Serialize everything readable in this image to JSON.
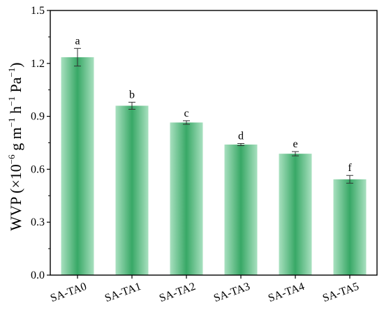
{
  "chart_data": {
    "type": "bar",
    "categories": [
      "SA-TA0",
      "SA-TA1",
      "SA-TA2",
      "SA-TA3",
      "SA-TA4",
      "SA-TA5"
    ],
    "values": [
      1.235,
      0.96,
      0.865,
      0.74,
      0.688,
      0.543
    ],
    "errors": [
      0.05,
      0.02,
      0.01,
      0.006,
      0.012,
      0.022
    ],
    "significance": [
      "a",
      "b",
      "c",
      "d",
      "e",
      "f"
    ],
    "ylabel": {
      "main": "WVP (×10",
      "exp1": "−6",
      "mid1": " g m",
      "exp2": "−1",
      "mid2": " h",
      "exp3": "−1",
      "mid3": " Pa",
      "exp4": "−1",
      "end": ")"
    },
    "ylim": [
      0,
      1.5
    ],
    "yticks": [
      "0.0",
      "0.3",
      "0.6",
      "0.9",
      "1.2",
      "1.5"
    ],
    "ytick_values": [
      0,
      0.3,
      0.6,
      0.9,
      1.2,
      1.5
    ],
    "bar_color_light": "#a8e0bf",
    "bar_color_dark": "#38a866",
    "grid": false
  }
}
